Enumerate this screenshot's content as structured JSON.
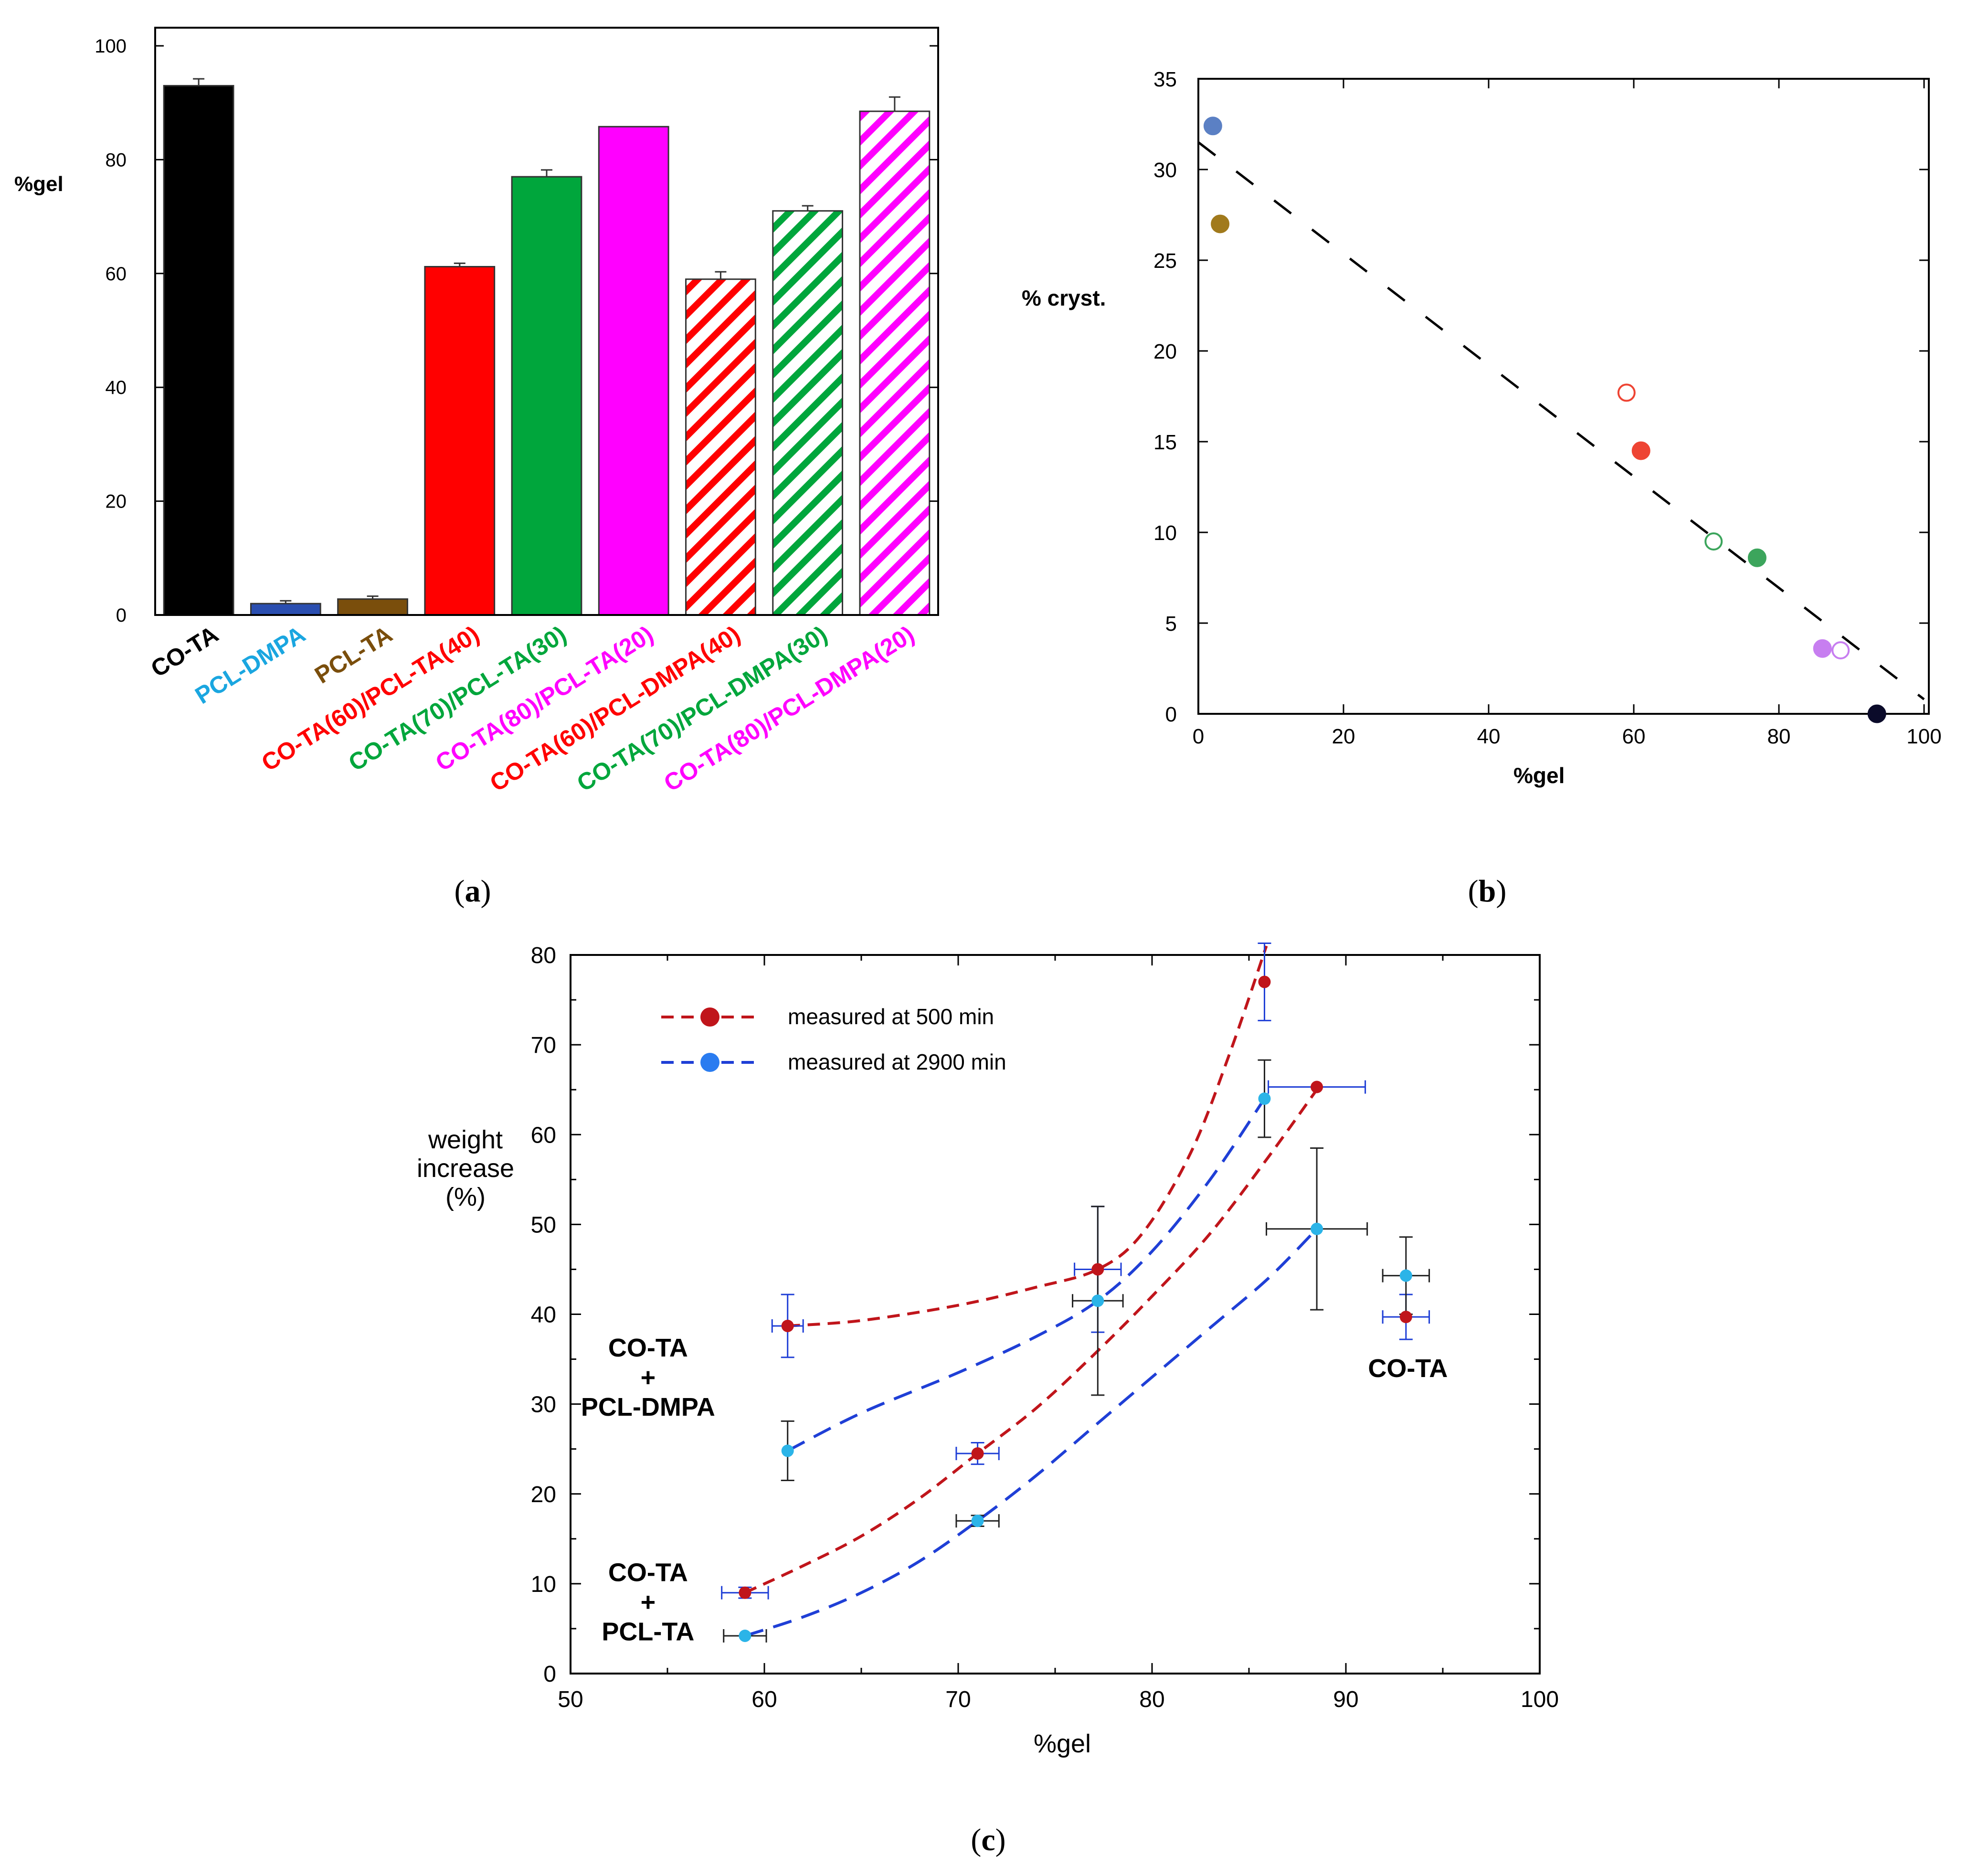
{
  "panel_labels": {
    "a": "(a)",
    "b": "(b)",
    "c": "(c)"
  },
  "chart_data": [
    {
      "id": "a",
      "type": "bar",
      "title": "",
      "xlabel": "",
      "ylabel": "%gel",
      "ylim": [
        0,
        100
      ],
      "yticks": [
        0,
        20,
        40,
        60,
        80,
        100
      ],
      "grid": false,
      "categories": [
        "CO-TA",
        "PCL-DMPA",
        "PCL-TA",
        "CO-TA(60)/PCL-TA(40)",
        "CO-TA(70)/PCL-TA(30)",
        "CO-TA(80)/PCL-TA(20)",
        "CO-TA(60)/PCL-DMPA(40)",
        "CO-TA(70)/PCL-DMPA(30)",
        "CO-TA(80)/PCL-DMPA(20)"
      ],
      "values": [
        93,
        2,
        2.8,
        61.2,
        77,
        85.8,
        59,
        71,
        88.5
      ],
      "errors": [
        1.2,
        0.5,
        0.5,
        0.6,
        1.2,
        0,
        1.3,
        0.9,
        2.5
      ],
      "colors": [
        "#000000",
        "#2a4eb0",
        "#7a4e0c",
        "#ff0000",
        "#00a63c",
        "#ff00ff",
        "#ff0000",
        "#00a63c",
        "#ff00ff"
      ],
      "label_colors": [
        "#000000",
        "#1aa6e0",
        "#7a4e0c",
        "#ff0000",
        "#00a63c",
        "#ff00ff",
        "#ff0000",
        "#00a63c",
        "#ff00ff"
      ],
      "hatched": [
        false,
        false,
        false,
        false,
        false,
        false,
        true,
        true,
        true
      ]
    },
    {
      "id": "b",
      "type": "scatter",
      "title": "",
      "xlabel": "%gel",
      "ylabel": "% cryst.",
      "xlim": [
        0,
        100
      ],
      "ylim": [
        0,
        35
      ],
      "xticks": [
        0,
        20,
        40,
        60,
        80,
        100
      ],
      "yticks": [
        0,
        5,
        10,
        15,
        20,
        25,
        30,
        35
      ],
      "grid": false,
      "points": [
        {
          "x": 2,
          "y": 32.4,
          "color": "#5b80c4",
          "filled": true
        },
        {
          "x": 3,
          "y": 27,
          "color": "#a17a1c",
          "filled": true
        },
        {
          "x": 59,
          "y": 17.7,
          "color": "#ee4433",
          "filled": false
        },
        {
          "x": 61,
          "y": 14.5,
          "color": "#ee4433",
          "filled": true
        },
        {
          "x": 71,
          "y": 9.5,
          "color": "#3ca55c",
          "filled": false
        },
        {
          "x": 77,
          "y": 8.6,
          "color": "#3ca55c",
          "filled": true
        },
        {
          "x": 86,
          "y": 3.6,
          "color": "#c77ef0",
          "filled": true
        },
        {
          "x": 88.5,
          "y": 3.5,
          "color": "#c77ef0",
          "filled": false
        },
        {
          "x": 93.5,
          "y": 0,
          "color": "#0b0b2a",
          "filled": true
        }
      ],
      "fit_line": {
        "x": [
          0,
          100
        ],
        "y": [
          31.5,
          0.8
        ],
        "style": "dashed"
      }
    },
    {
      "id": "c",
      "type": "scatter",
      "title": "",
      "xlabel": "%gel",
      "ylabel": "weight increase (%)",
      "ylabel_lines": [
        "weight",
        "increase",
        "(%)"
      ],
      "xlim": [
        50,
        100
      ],
      "ylim": [
        0,
        80
      ],
      "xticks": [
        50,
        60,
        70,
        80,
        90,
        100
      ],
      "yticks": [
        0,
        10,
        20,
        30,
        40,
        50,
        60,
        70,
        80
      ],
      "grid": false,
      "legend_position": "top-left",
      "series": [
        {
          "name": "measured at 500 min",
          "color": "#c0151b",
          "points": [
            {
              "x": 61.2,
              "y": 38.7,
              "xerr": 0.8,
              "yerr": 3.5
            },
            {
              "x": 77.2,
              "y": 45,
              "xerr": 1.2,
              "yerr": 7
            },
            {
              "x": 85.8,
              "y": 77,
              "xerr": 0,
              "yerr": 4.3
            },
            {
              "x": 59,
              "y": 9,
              "xerr": 1.2,
              "yerr": 0.6
            },
            {
              "x": 71,
              "y": 24.5,
              "xerr": 1.1,
              "yerr": 1.2
            },
            {
              "x": 88.5,
              "y": 65.3,
              "xerr": 2.5,
              "yerr": 0
            },
            {
              "x": 93.1,
              "y": 39.7,
              "xerr": 1.2,
              "yerr": 2.5
            }
          ],
          "curves": [
            {
              "x": [
                61.2,
                65,
                70,
                74,
                77.2,
                79.5,
                82,
                84,
                85.9
              ],
              "y": [
                38.7,
                39.3,
                41,
                43,
                45,
                49,
                58,
                69,
                81
              ]
            },
            {
              "x": [
                59,
                62,
                65,
                68,
                71,
                74,
                77,
                80,
                83,
                86,
                88.5
              ],
              "y": [
                9,
                12,
                15.3,
                19.5,
                24.5,
                29.5,
                35.5,
                42,
                49,
                57.5,
                65
              ]
            }
          ]
        },
        {
          "name": "measured at 2900 min",
          "color": "#1f3fd6",
          "points": [
            {
              "x": 61.2,
              "y": 24.8,
              "xerr": 0,
              "yerr": 3.3
            },
            {
              "x": 77.2,
              "y": 41.5,
              "xerr": 1.3,
              "yerr": 10.5
            },
            {
              "x": 85.8,
              "y": 64,
              "xerr": 0,
              "yerr": 4.3
            },
            {
              "x": 59,
              "y": 4.2,
              "xerr": 1.1,
              "yerr": 0
            },
            {
              "x": 71,
              "y": 17,
              "xerr": 1.1,
              "yerr": 0.6
            },
            {
              "x": 88.5,
              "y": 49.5,
              "xerr": 2.6,
              "yerr": 9
            },
            {
              "x": 93.1,
              "y": 44.3,
              "xerr": 1.2,
              "yerr": 4.3
            }
          ],
          "curves": [
            {
              "x": [
                61.2,
                65,
                70,
                74,
                77.2,
                80,
                83,
                85.8
              ],
              "y": [
                24.8,
                29,
                33.5,
                37.5,
                41.5,
                47,
                55,
                64
              ]
            },
            {
              "x": [
                59,
                62,
                65,
                68,
                71,
                74,
                77,
                80,
                83,
                86,
                88.5
              ],
              "y": [
                4.2,
                6.3,
                9,
                12.5,
                17,
                22,
                27.5,
                33,
                38.5,
                44,
                49.5
              ]
            }
          ]
        }
      ],
      "annotations": [
        {
          "text": "CO-TA\n+\nPCL-DMPA",
          "at": [
            54,
            32
          ]
        },
        {
          "text": "CO-TA\n+\nPCL-TA",
          "at": [
            54,
            7
          ]
        },
        {
          "text": "CO-TA",
          "at": [
            93.2,
            33
          ]
        }
      ]
    }
  ]
}
